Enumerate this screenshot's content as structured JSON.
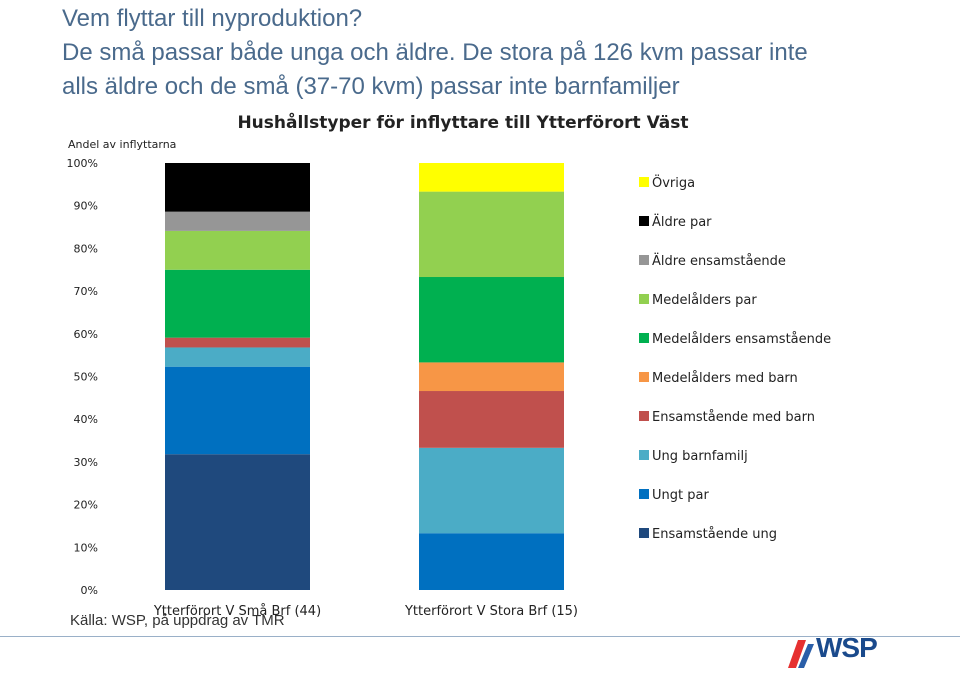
{
  "slide": {
    "title_lines": [
      "Vem flyttar till nyproduktion?",
      "De små passar både unga och äldre. De stora på 126 kvm passar inte",
      "alls äldre och de små (37-70 kvm) passar inte barnfamiljer"
    ],
    "source": "Källa: WSP, på uppdrag av TMR",
    "logo_text": "WSP",
    "logo_colors": [
      "#e63030",
      "#2a5ea8"
    ]
  },
  "chart_data": {
    "type": "bar",
    "stacked": true,
    "percent": true,
    "title": "Hushållstyper för inflyttare till Ytterförort Väst",
    "ylabel": "Andel av inflyttarna",
    "ylim": [
      0,
      100
    ],
    "yticks": [
      "0%",
      "10%",
      "20%",
      "30%",
      "40%",
      "50%",
      "60%",
      "70%",
      "80%",
      "90%",
      "100%"
    ],
    "categories": [
      "Ytterförort V Små Brf (44)",
      "Ytterförort V Stora Brf (15)"
    ],
    "legend_position": "right",
    "grid": false,
    "series": [
      {
        "name": "Ensamstående ung",
        "color": "#1f497d",
        "values": [
          31.8,
          0
        ]
      },
      {
        "name": "Ungt par",
        "color": "#0070c0",
        "values": [
          20.5,
          13.3
        ]
      },
      {
        "name": "Ung barnfamilj",
        "color": "#4bacc6",
        "values": [
          4.5,
          20.0
        ]
      },
      {
        "name": "Ensamstående med barn",
        "color": "#c0504d",
        "values": [
          2.3,
          13.3
        ]
      },
      {
        "name": "Medelålders med barn",
        "color": "#f79646",
        "values": [
          0,
          6.7
        ]
      },
      {
        "name": "Medelålders ensamstående",
        "color": "#00b050",
        "values": [
          15.9,
          20.0
        ]
      },
      {
        "name": "Medelålders par",
        "color": "#92d050",
        "values": [
          9.1,
          20.0
        ]
      },
      {
        "name": "Äldre ensamstående",
        "color": "#969696",
        "values": [
          4.5,
          0
        ]
      },
      {
        "name": "Äldre par",
        "color": "#000000",
        "values": [
          11.4,
          0
        ]
      },
      {
        "name": "Övriga",
        "color": "#ffff00",
        "values": [
          0,
          6.7
        ]
      }
    ]
  }
}
